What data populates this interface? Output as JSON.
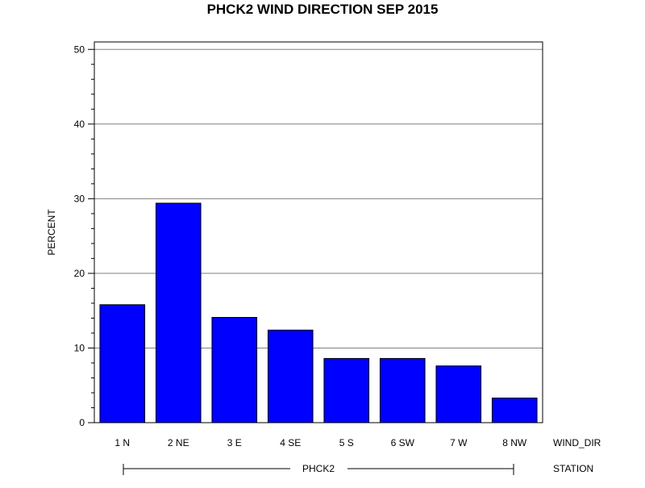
{
  "chart_data": {
    "type": "bar",
    "title": "PHCK2 WIND DIRECTION SEP 2015",
    "ylabel": "PERCENT",
    "xlabel": "WIND_DIR",
    "group_axis_label": "STATION",
    "group_label": "PHCK2",
    "categories": [
      "1 N",
      "2 NE",
      "3 E",
      "4 SE",
      "5 S",
      "6 SW",
      "7 W",
      "8 NW"
    ],
    "values": [
      15.8,
      29.4,
      14.1,
      12.4,
      8.6,
      8.6,
      7.6,
      3.3
    ],
    "ylim": [
      0,
      51
    ],
    "yticks": [
      0,
      10,
      20,
      30,
      40,
      50
    ],
    "grid": true,
    "legend": "none",
    "colors": {
      "bar": "#0000FF",
      "bar_outline": "#000000",
      "grid": "#808080"
    }
  }
}
